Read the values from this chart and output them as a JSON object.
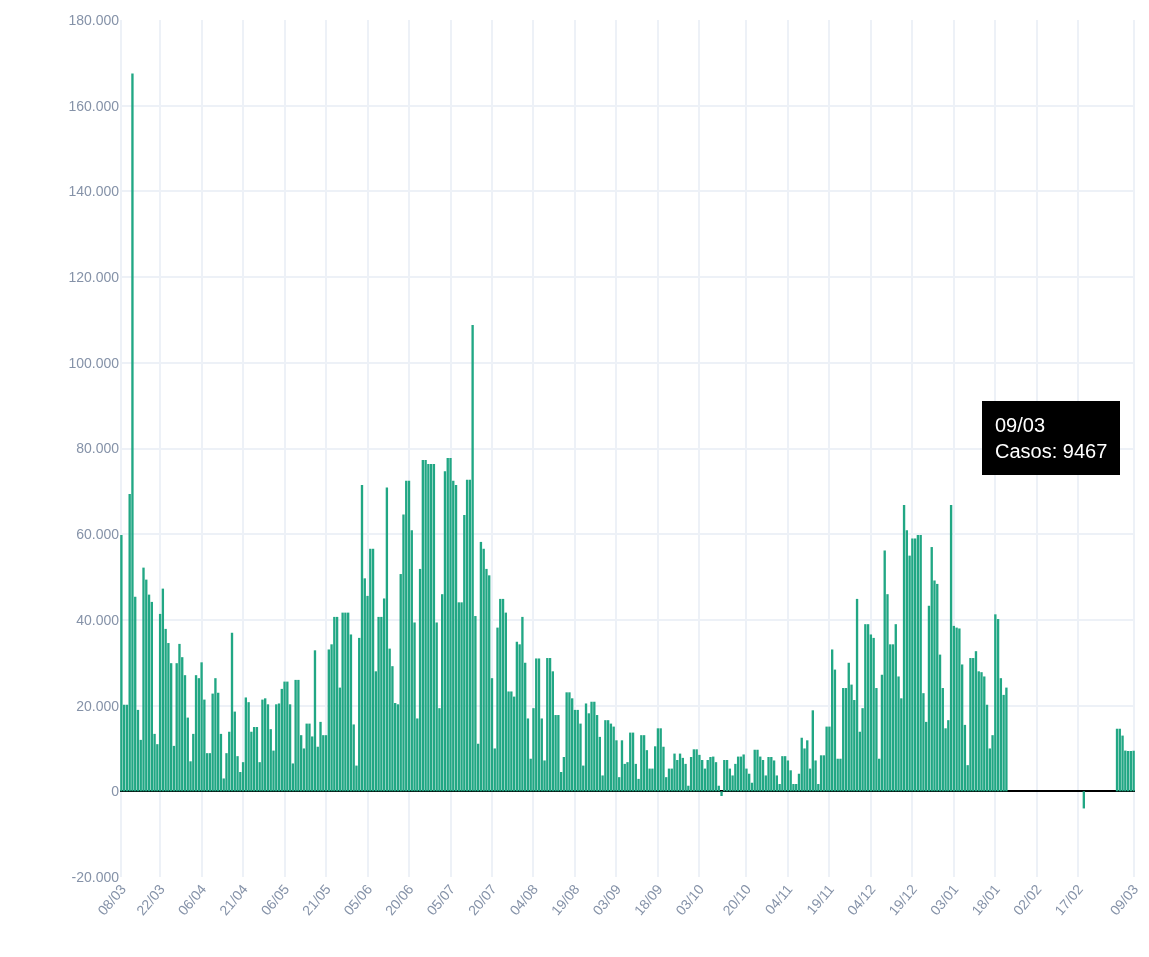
{
  "chart_data": {
    "type": "bar",
    "categories": [
      "08/03",
      null,
      null,
      null,
      null,
      null,
      null,
      null,
      null,
      null,
      null,
      null,
      null,
      null,
      "22/03",
      null,
      null,
      null,
      null,
      null,
      null,
      null,
      null,
      null,
      null,
      null,
      null,
      null,
      null,
      "06/04",
      null,
      null,
      null,
      null,
      null,
      null,
      null,
      null,
      null,
      null,
      null,
      null,
      null,
      null,
      "21/04",
      null,
      null,
      null,
      null,
      null,
      null,
      null,
      null,
      null,
      null,
      null,
      null,
      null,
      null,
      "06/05",
      null,
      null,
      null,
      null,
      null,
      null,
      null,
      null,
      null,
      null,
      null,
      null,
      null,
      null,
      "21/05",
      null,
      null,
      null,
      null,
      null,
      null,
      null,
      null,
      null,
      null,
      null,
      null,
      null,
      null,
      "05/06",
      null,
      null,
      null,
      null,
      null,
      null,
      null,
      null,
      null,
      null,
      null,
      null,
      null,
      null,
      "20/06",
      null,
      null,
      null,
      null,
      null,
      null,
      null,
      null,
      null,
      null,
      null,
      null,
      null,
      null,
      "05/07",
      null,
      null,
      null,
      null,
      null,
      null,
      null,
      null,
      null,
      null,
      null,
      null,
      null,
      null,
      "20/07",
      null,
      null,
      null,
      null,
      null,
      null,
      null,
      null,
      null,
      null,
      null,
      null,
      null,
      null,
      "04/08",
      null,
      null,
      null,
      null,
      null,
      null,
      null,
      null,
      null,
      null,
      null,
      null,
      null,
      null,
      "19/08",
      null,
      null,
      null,
      null,
      null,
      null,
      null,
      null,
      null,
      null,
      null,
      null,
      null,
      null,
      "03/09",
      null,
      null,
      null,
      null,
      null,
      null,
      null,
      null,
      null,
      null,
      null,
      null,
      null,
      null,
      "18/09",
      null,
      null,
      null,
      null,
      null,
      null,
      null,
      null,
      null,
      null,
      null,
      null,
      null,
      null,
      "03/10",
      null,
      null,
      null,
      null,
      null,
      null,
      null,
      null,
      null,
      null,
      null,
      null,
      null,
      null,
      null,
      null,
      "20/10",
      null,
      null,
      null,
      null,
      null,
      null,
      null,
      null,
      null,
      null,
      null,
      null,
      null,
      null,
      "04/11",
      null,
      null,
      null,
      null,
      null,
      null,
      null,
      null,
      null,
      null,
      null,
      null,
      null,
      null,
      "19/11",
      null,
      null,
      null,
      null,
      null,
      null,
      null,
      null,
      null,
      null,
      null,
      null,
      null,
      null,
      "04/12",
      null,
      null,
      null,
      null,
      null,
      null,
      null,
      null,
      null,
      null,
      null,
      null,
      null,
      null,
      "19/12",
      null,
      null,
      null,
      null,
      null,
      null,
      null,
      null,
      null,
      null,
      null,
      null,
      null,
      null,
      "03/01",
      null,
      null,
      null,
      null,
      null,
      null,
      null,
      null,
      null,
      null,
      null,
      null,
      null,
      null,
      "18/01",
      null,
      null,
      null,
      null,
      null,
      null,
      null,
      null,
      null,
      null,
      null,
      null,
      null,
      null,
      "02/02",
      null,
      null,
      null,
      null,
      null,
      null,
      null,
      null,
      null,
      null,
      null,
      null,
      null,
      null,
      "17/02",
      null,
      null,
      null,
      null,
      null,
      null,
      null,
      null,
      null,
      null,
      null,
      null,
      null,
      null,
      null,
      null,
      null,
      null,
      null,
      "09/03"
    ],
    "series": [
      {
        "color": "#21a784",
        "values": [
          59800,
          20200,
          20200,
          69400,
          167500,
          45400,
          19000,
          12000,
          52200,
          49400,
          45900,
          44200,
          13400,
          11000,
          41400,
          47300,
          37900,
          34600,
          29900,
          10600,
          29900,
          34400,
          31300,
          27100,
          17200,
          7000,
          13400,
          27100,
          26400,
          30100,
          21400,
          8900,
          8900,
          22800,
          26400,
          23000,
          13400,
          3000,
          8900,
          13900,
          37000,
          18600,
          8200,
          4500,
          6800,
          21900,
          20800,
          13900,
          15000,
          15000,
          6800,
          21400,
          21700,
          20300,
          14500,
          9500,
          20300,
          20500,
          23900,
          25600,
          25600,
          20300,
          6500,
          26000,
          26000,
          13100,
          10000,
          15800,
          15800,
          12800,
          32900,
          10400,
          16200,
          13100,
          13100,
          33100,
          34300,
          40700,
          40700,
          24200,
          41700,
          41700,
          41700,
          36600,
          15600,
          6000,
          35800,
          71500,
          49700,
          45600,
          56600,
          56600,
          28000,
          40700,
          40700,
          45000,
          70900,
          33300,
          29200,
          20600,
          20300,
          50700,
          64600,
          72500,
          72500,
          60900,
          39400,
          17000,
          51900,
          77300,
          77300,
          76400,
          76400,
          76400,
          39400,
          19400,
          46000,
          74700,
          77800,
          77800,
          72500,
          71500,
          44100,
          44100,
          64500,
          72700,
          72700,
          108800,
          40900,
          11100,
          58200,
          56600,
          51900,
          50400,
          26400,
          10000,
          38200,
          44900,
          44900,
          41700,
          23300,
          23300,
          22100,
          34900,
          34300,
          40700,
          30000,
          17000,
          7600,
          19400,
          31000,
          31000,
          17000,
          7200,
          31100,
          31100,
          28000,
          17800,
          17800,
          4500,
          8000,
          23100,
          23100,
          21700,
          19000,
          19000,
          15800,
          6000,
          20500,
          18200,
          20900,
          20900,
          17800,
          12700,
          3700,
          16600,
          16600,
          15800,
          15100,
          11900,
          3300,
          11900,
          6400,
          6800,
          13700,
          13700,
          6400,
          2900,
          13100,
          13100,
          9600,
          5300,
          5300,
          10500,
          14700,
          14700,
          10400,
          3300,
          5300,
          5300,
          8800,
          7300,
          8800,
          7800,
          6400,
          1300,
          8000,
          9800,
          9800,
          8500,
          7300,
          5300,
          7300,
          8000,
          8100,
          6800,
          1300,
          -1100,
          7300,
          7300,
          5300,
          3700,
          6400,
          8100,
          8100,
          8600,
          5300,
          4100,
          2000,
          9700,
          9700,
          8100,
          7300,
          3700,
          8000,
          8000,
          7200,
          3700,
          1700,
          8200,
          8200,
          7200,
          4900,
          1700,
          1700,
          4100,
          12500,
          10000,
          11900,
          5300,
          18900,
          7200,
          1700,
          8400,
          8400,
          15100,
          15100,
          33100,
          28400,
          7600,
          7600,
          24100,
          24100,
          30000,
          24900,
          21300,
          44900,
          13900,
          19400,
          39000,
          39000,
          36600,
          35800,
          24100,
          7600,
          27200,
          56200,
          46000,
          34300,
          34300,
          39000,
          26800,
          21700,
          66800,
          60900,
          55000,
          59000,
          59000,
          59800,
          59800,
          22900,
          16200,
          43300,
          57000,
          49200,
          48400,
          31900,
          24100,
          14700,
          16600,
          66800,
          38600,
          38200,
          38000,
          29600,
          15500,
          6100,
          31100,
          31100,
          32700,
          28000,
          27800,
          26800,
          20200,
          10000,
          13100,
          41300,
          40200,
          26400,
          22500,
          24200,
          null,
          null,
          null,
          null,
          null,
          null,
          null,
          null,
          null,
          null,
          null,
          null,
          null,
          null,
          null,
          null,
          null,
          null,
          null,
          null,
          null,
          null,
          null,
          null,
          null,
          null,
          null,
          -4000,
          null,
          null,
          null,
          null,
          null,
          null,
          null,
          null,
          null,
          null,
          null,
          14600,
          14600,
          13000,
          9500,
          9400,
          9400,
          9467
        ]
      }
    ],
    "ylim": [
      -20000,
      180000
    ],
    "yticks": [
      {
        "value": -20000,
        "label": "-20.000"
      },
      0,
      {
        "value": 20000,
        "label": "20.000"
      },
      {
        "value": 40000,
        "label": "40.000"
      },
      {
        "value": 60000,
        "label": "60.000"
      },
      {
        "value": 80000,
        "label": "80.000"
      },
      {
        "value": 100000,
        "label": "100.000"
      },
      {
        "value": 120000,
        "label": "120.000"
      },
      {
        "value": 140000,
        "label": "140.000"
      },
      {
        "value": 160000,
        "label": "160.000"
      },
      {
        "value": 180000,
        "label": "180.000"
      }
    ],
    "grid": true,
    "legend": false,
    "annotations": [
      "09/03\nCasos: 9467"
    ]
  }
}
